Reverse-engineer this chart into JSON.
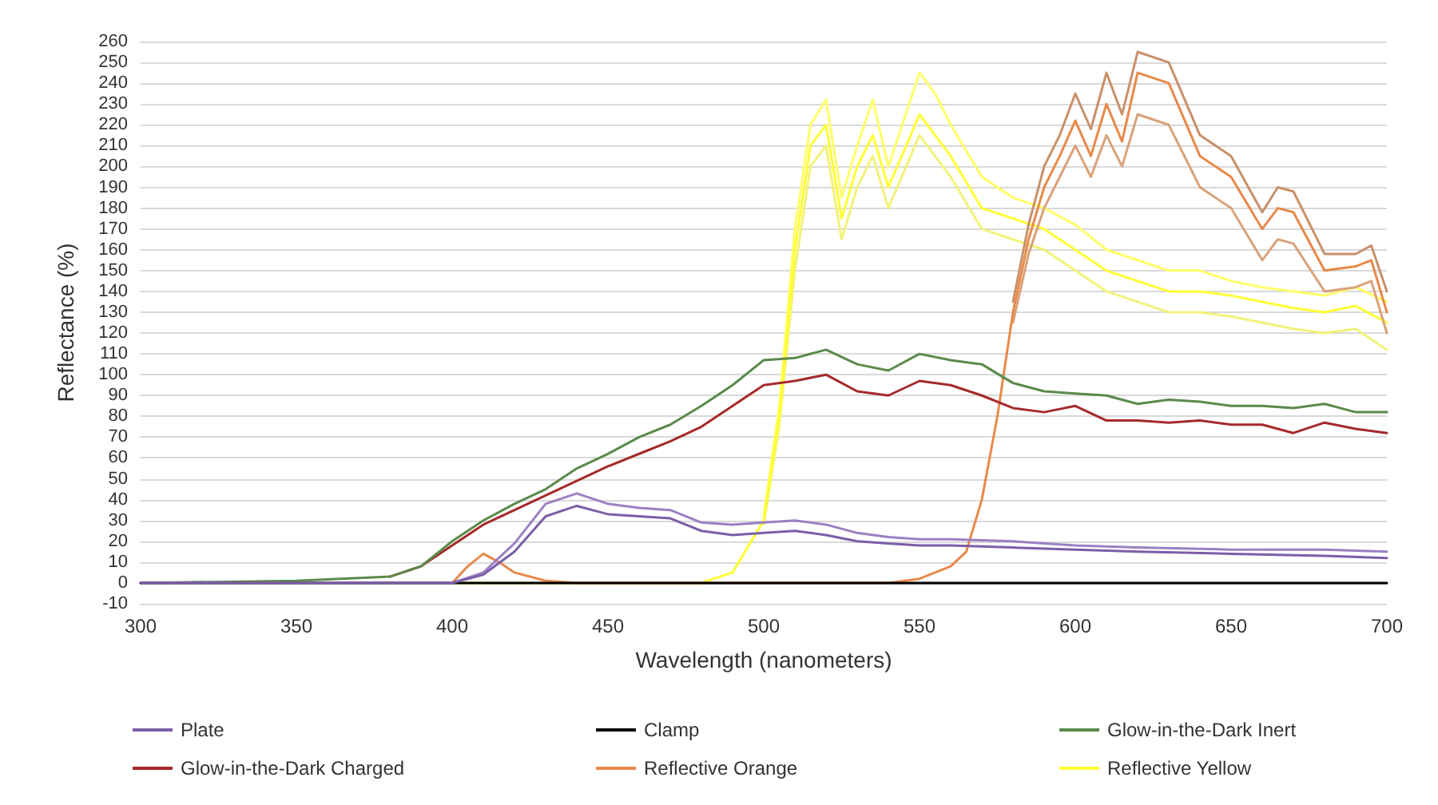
{
  "chart_data": {
    "type": "line",
    "xlabel": "Wavelength (nanometers)",
    "ylabel": "Reflectance (%)",
    "xlim": [
      300,
      700
    ],
    "xticks": [
      300,
      350,
      400,
      450,
      500,
      550,
      600,
      650,
      700
    ],
    "ylim": [
      -10,
      260
    ],
    "yticks": [
      -10,
      0,
      10,
      20,
      30,
      40,
      50,
      60,
      70,
      80,
      90,
      100,
      110,
      120,
      130,
      140,
      150,
      160,
      170,
      180,
      190,
      200,
      210,
      220,
      230,
      240,
      250,
      260
    ],
    "grid": "y",
    "legend": "bottom",
    "marker": "none",
    "line_style": "solid",
    "series": [
      {
        "name": "Plate",
        "color": "#7b5ea7",
        "x": [
          300,
          350,
          400,
          410,
          420,
          430,
          440,
          450,
          460,
          470,
          480,
          490,
          500,
          510,
          520,
          530,
          540,
          550,
          560,
          580,
          600,
          620,
          650,
          680,
          700
        ],
        "values": [
          0,
          0,
          0,
          4,
          15,
          32,
          37,
          33,
          32,
          31,
          25,
          23,
          24,
          25,
          23,
          20,
          19,
          18,
          18,
          17,
          16,
          15,
          14,
          13,
          12
        ]
      },
      {
        "color": "#9a80c4",
        "x": [
          300,
          350,
          400,
          410,
          420,
          430,
          440,
          450,
          460,
          470,
          480,
          490,
          500,
          510,
          520,
          530,
          540,
          550,
          560,
          580,
          600,
          620,
          650,
          680,
          700
        ],
        "values": [
          0,
          0,
          0,
          5,
          19,
          38,
          43,
          38,
          36,
          35,
          29,
          28,
          29,
          30,
          28,
          24,
          22,
          21,
          21,
          20,
          18,
          17,
          16,
          16,
          15
        ]
      },
      {
        "name": "Clamp",
        "color": "#000000",
        "x": [
          300,
          400,
          500,
          600,
          700
        ],
        "values": [
          0,
          0,
          0,
          0,
          0
        ]
      },
      {
        "name": "Glow-in-the-Dark Inert",
        "color": "#5a8a4a",
        "x": [
          300,
          350,
          380,
          390,
          400,
          410,
          420,
          430,
          440,
          450,
          460,
          470,
          480,
          490,
          500,
          510,
          520,
          530,
          540,
          550,
          560,
          570,
          580,
          590,
          600,
          610,
          620,
          630,
          640,
          650,
          660,
          670,
          680,
          690,
          700
        ],
        "values": [
          0,
          1,
          3,
          8,
          20,
          30,
          38,
          45,
          55,
          62,
          70,
          76,
          85,
          95,
          107,
          108,
          112,
          105,
          102,
          110,
          107,
          105,
          96,
          92,
          91,
          90,
          86,
          88,
          87,
          85,
          85,
          84,
          86,
          82,
          82
        ]
      },
      {
        "name": "Glow-in-the-Dark Charged",
        "color": "#a52a2a",
        "x": [
          380,
          390,
          400,
          410,
          420,
          430,
          440,
          450,
          460,
          470,
          480,
          490,
          500,
          510,
          520,
          530,
          540,
          550,
          560,
          570,
          580,
          590,
          600,
          610,
          620,
          630,
          640,
          650,
          660,
          670,
          680,
          690,
          700
        ],
        "values": [
          3,
          8,
          18,
          28,
          35,
          42,
          49,
          56,
          62,
          68,
          75,
          85,
          95,
          97,
          100,
          92,
          90,
          97,
          95,
          90,
          84,
          82,
          85,
          78,
          78,
          77,
          78,
          76,
          76,
          72,
          77,
          74,
          72
        ]
      },
      {
        "name": "Reflective Orange",
        "color": "#e8894a",
        "x": [
          300,
          400,
          405,
          410,
          415,
          420,
          430,
          440,
          540,
          550,
          560,
          565,
          570,
          575,
          580,
          585,
          590,
          595,
          600,
          605,
          610,
          615,
          620,
          630,
          640,
          650,
          660,
          665,
          670,
          680,
          690,
          695,
          700
        ],
        "values": [
          0,
          0,
          8,
          14,
          10,
          5,
          1,
          0,
          0,
          2,
          8,
          15,
          40,
          80,
          130,
          165,
          190,
          205,
          222,
          205,
          230,
          212,
          245,
          240,
          205,
          195,
          170,
          180,
          178,
          150,
          152,
          155,
          130
        ]
      },
      {
        "color": "#d9a27a",
        "x": [
          580,
          585,
          590,
          595,
          600,
          605,
          610,
          615,
          620,
          630,
          640,
          650,
          660,
          665,
          670,
          680,
          690,
          695,
          700
        ],
        "values": [
          125,
          158,
          180,
          195,
          210,
          195,
          215,
          200,
          225,
          220,
          190,
          180,
          155,
          165,
          163,
          140,
          142,
          145,
          120
        ]
      },
      {
        "color": "#c8906a",
        "x": [
          580,
          585,
          590,
          595,
          600,
          605,
          610,
          615,
          620,
          630,
          640,
          650,
          660,
          665,
          670,
          680,
          690,
          695,
          700
        ],
        "values": [
          135,
          172,
          200,
          215,
          235,
          218,
          245,
          225,
          255,
          250,
          215,
          205,
          178,
          190,
          188,
          158,
          158,
          162,
          140
        ]
      },
      {
        "name": "Reflective Yellow",
        "color": "#ffff33",
        "x": [
          300,
          480,
          490,
          500,
          505,
          510,
          515,
          520,
          525,
          530,
          535,
          540,
          550,
          555,
          560,
          570,
          580,
          590,
          600,
          610,
          620,
          630,
          640,
          650,
          660,
          670,
          680,
          690,
          700
        ],
        "values": [
          0,
          0,
          5,
          30,
          80,
          160,
          210,
          220,
          175,
          200,
          215,
          190,
          225,
          215,
          205,
          180,
          175,
          170,
          160,
          150,
          145,
          140,
          140,
          138,
          135,
          132,
          130,
          133,
          125
        ]
      },
      {
        "color": "#f2f27a",
        "x": [
          500,
          505,
          510,
          515,
          520,
          525,
          530,
          535,
          540,
          550,
          555,
          560,
          570,
          580,
          590,
          600,
          610,
          620,
          630,
          640,
          650,
          660,
          670,
          680,
          690,
          700
        ],
        "values": [
          28,
          75,
          150,
          200,
          210,
          165,
          190,
          205,
          180,
          215,
          205,
          195,
          170,
          165,
          160,
          150,
          140,
          135,
          130,
          130,
          128,
          125,
          122,
          120,
          122,
          112
        ]
      },
      {
        "color": "#ffff66",
        "x": [
          500,
          505,
          510,
          515,
          520,
          525,
          530,
          535,
          540,
          550,
          555,
          560,
          570,
          580,
          590,
          600,
          610,
          620,
          630,
          640,
          650,
          660,
          670,
          680,
          690,
          700
        ],
        "values": [
          32,
          85,
          170,
          220,
          232,
          185,
          210,
          232,
          200,
          245,
          235,
          220,
          195,
          185,
          180,
          172,
          160,
          155,
          150,
          150,
          145,
          142,
          140,
          138,
          142,
          135
        ]
      }
    ]
  }
}
